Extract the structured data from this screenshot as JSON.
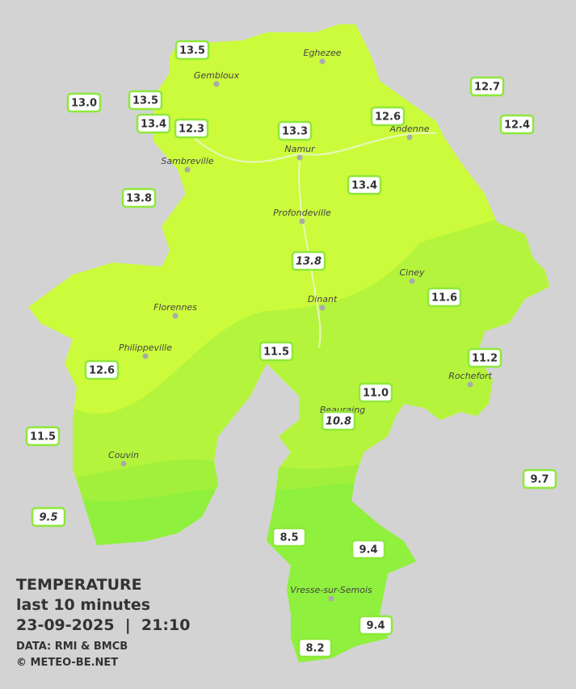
{
  "cities": [
    "Eghezee",
    "Gembloux",
    "Andenne",
    "Namur",
    "Sambreville",
    "Profondeville",
    "Ciney",
    "Dinant",
    "Florennes",
    "Philippeville",
    "Rochefort",
    "Beauraing",
    "Couvin",
    "Vresse-sur-Semois"
  ],
  "stations": [
    "13.5",
    "13.0",
    "13.5",
    "13.4",
    "12.3",
    "13.3",
    "12.6",
    "12.7",
    "12.4",
    "13.8",
    "13.4",
    "13.8",
    "11.6",
    "11.5",
    "11.2",
    "12.6",
    "11.0",
    "10.8",
    "11.5",
    "9.7",
    "9.5",
    "8.5",
    "9.4",
    "9.4",
    "8.2"
  ],
  "legend": {
    "title": "TEMPERATURE",
    "subtitle": "last 10 minutes",
    "datetime": "23-09-2025  |  21:10",
    "source": "DATA: RMI & BMCB",
    "credit": "© METEO-BE.NET"
  }
}
